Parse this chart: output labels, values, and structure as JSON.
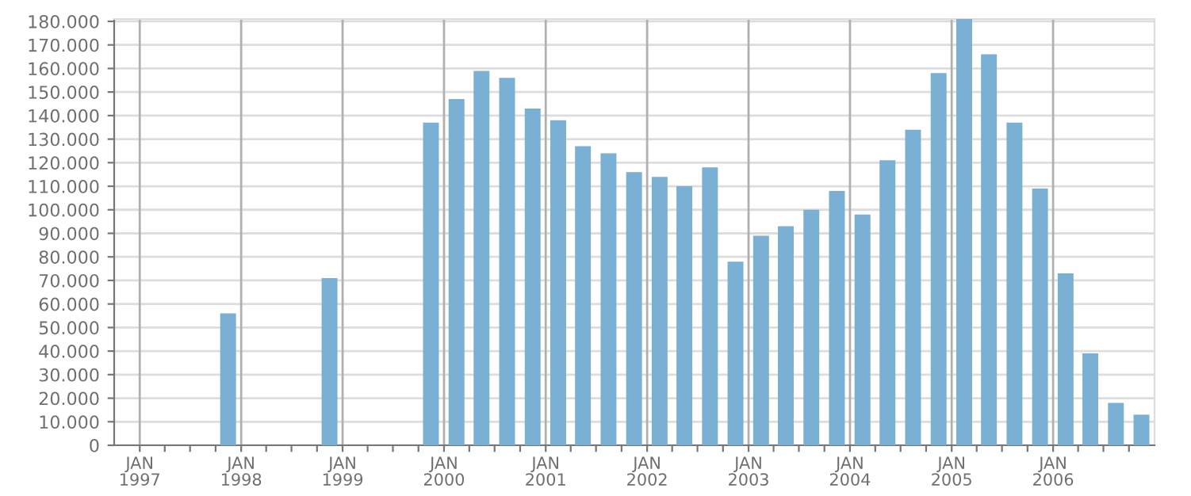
{
  "chart_data": {
    "type": "bar",
    "x": [
      "1997-11-15",
      "1998-11-15",
      "1999-11-15",
      "2000-02-15",
      "2000-05-15",
      "2000-08-15",
      "2000-11-15",
      "2001-02-15",
      "2001-05-15",
      "2001-08-15",
      "2001-11-15",
      "2002-02-15",
      "2002-05-15",
      "2002-08-15",
      "2002-11-15",
      "2003-02-15",
      "2003-05-15",
      "2003-08-15",
      "2003-11-15",
      "2004-02-15",
      "2004-05-15",
      "2004-08-15",
      "2004-11-15",
      "2005-02-15",
      "2005-05-15",
      "2005-08-15",
      "2005-11-15",
      "2006-02-15",
      "2006-05-15",
      "2006-08-15",
      "2006-11-15"
    ],
    "values": [
      56000,
      71000,
      137000,
      147000,
      159000,
      156000,
      143000,
      138000,
      127000,
      124000,
      116000,
      114000,
      110000,
      118000,
      78000,
      89000,
      93000,
      100000,
      108000,
      98000,
      121000,
      134000,
      158000,
      181000,
      166000,
      137000,
      109000,
      73000,
      39000,
      18000,
      13000
    ],
    "color": "#79b0d3",
    "xlim": [
      "1996-10-01",
      "2007-01-01"
    ],
    "xticks": [
      {
        "value": "1997-01-01",
        "label": "JAN\n1997"
      },
      {
        "value": "1997-04-01",
        "label": null
      },
      {
        "value": "1997-07-01",
        "label": null
      },
      {
        "value": "1997-10-01",
        "label": null
      },
      {
        "value": "1998-01-01",
        "label": "JAN\n1998"
      },
      {
        "value": "1998-04-01",
        "label": null
      },
      {
        "value": "1998-07-01",
        "label": null
      },
      {
        "value": "1998-10-01",
        "label": null
      },
      {
        "value": "1999-01-01",
        "label": "JAN\n1999"
      },
      {
        "value": "1999-04-01",
        "label": null
      },
      {
        "value": "1999-07-01",
        "label": null
      },
      {
        "value": "1999-10-01",
        "label": null
      },
      {
        "value": "2000-01-01",
        "label": "JAN\n2000"
      },
      {
        "value": "2000-04-01",
        "label": null
      },
      {
        "value": "2000-07-01",
        "label": null
      },
      {
        "value": "2000-10-01",
        "label": null
      },
      {
        "value": "2001-01-01",
        "label": "JAN\n2001"
      },
      {
        "value": "2001-04-01",
        "label": null
      },
      {
        "value": "2001-07-01",
        "label": null
      },
      {
        "value": "2001-10-01",
        "label": null
      },
      {
        "value": "2002-01-01",
        "label": "JAN\n2002"
      },
      {
        "value": "2002-04-01",
        "label": null
      },
      {
        "value": "2002-07-01",
        "label": null
      },
      {
        "value": "2002-10-01",
        "label": null
      },
      {
        "value": "2003-01-01",
        "label": "JAN\n2003"
      },
      {
        "value": "2003-04-01",
        "label": null
      },
      {
        "value": "2003-07-01",
        "label": null
      },
      {
        "value": "2003-10-01",
        "label": null
      },
      {
        "value": "2004-01-01",
        "label": "JAN\n2004"
      },
      {
        "value": "2004-04-01",
        "label": null
      },
      {
        "value": "2004-07-01",
        "label": null
      },
      {
        "value": "2004-10-01",
        "label": null
      },
      {
        "value": "2005-01-01",
        "label": "JAN\n2005"
      },
      {
        "value": "2005-04-01",
        "label": null
      },
      {
        "value": "2005-07-01",
        "label": null
      },
      {
        "value": "2005-10-01",
        "label": null
      },
      {
        "value": "2006-01-01",
        "label": "JAN\n2006"
      },
      {
        "value": "2006-04-01",
        "label": null
      },
      {
        "value": "2006-07-01",
        "label": null
      },
      {
        "value": "2006-10-01",
        "label": null
      }
    ],
    "ylim": [
      0,
      181000
    ],
    "yticks": [
      0,
      {
        "value": 10000,
        "label": "10.000"
      },
      {
        "value": 20000,
        "label": "20.000"
      },
      {
        "value": 30000,
        "label": "30.000"
      },
      {
        "value": 40000,
        "label": "40.000"
      },
      {
        "value": 50000,
        "label": "50.000"
      },
      {
        "value": 60000,
        "label": "60.000"
      },
      {
        "value": 70000,
        "label": "70.000"
      },
      {
        "value": 80000,
        "label": "80.000"
      },
      {
        "value": 90000,
        "label": "90.000"
      },
      {
        "value": 100000,
        "label": "100.000"
      },
      {
        "value": 110000,
        "label": "110.000"
      },
      {
        "value": 120000,
        "label": "120.000"
      },
      {
        "value": 130000,
        "label": "130.000"
      },
      {
        "value": 140000,
        "label": "140.000"
      },
      {
        "value": 150000,
        "label": "150.000"
      },
      {
        "value": 160000,
        "label": "160.000"
      },
      {
        "value": 170000,
        "label": "170.000"
      },
      {
        "value": 180000,
        "label": "180.000"
      }
    ],
    "grid": true
  }
}
